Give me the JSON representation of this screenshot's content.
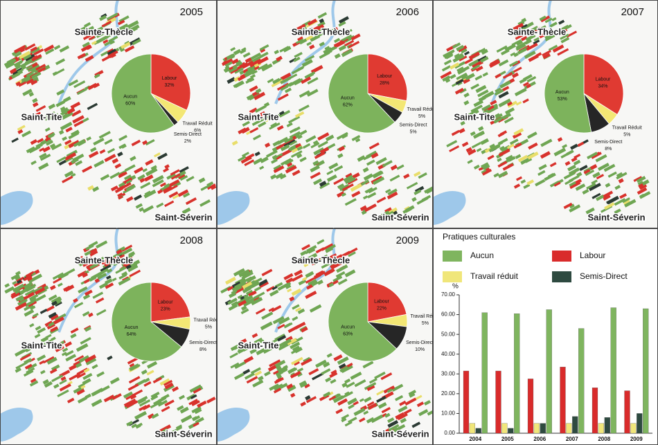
{
  "chart_data": [
    {
      "type": "pie",
      "title": "2005",
      "categories": [
        "Labour",
        "Travail Réduit",
        "Semis-Direct",
        "Aucun"
      ],
      "values": [
        32,
        6,
        2,
        60
      ],
      "value_labels": [
        "32%",
        "6%",
        "2%",
        "60%"
      ],
      "colors": [
        "#e03a32",
        "#f3e774",
        "#262626",
        "#7db35c"
      ],
      "annotations": [
        "Sainte-Thècle",
        "Saint-Tite",
        "Saint-Séverin"
      ]
    },
    {
      "type": "pie",
      "title": "2006",
      "categories": [
        "Labour",
        "Travail Réduit",
        "Semis-Direct",
        "Aucun"
      ],
      "values": [
        28,
        5,
        5,
        62
      ],
      "value_labels": [
        "28%",
        "5%",
        "5%",
        "62%"
      ],
      "colors": [
        "#e03a32",
        "#f3e774",
        "#262626",
        "#7db35c"
      ],
      "annotations": [
        "Sainte-Thècle",
        "Saint-Tite",
        "Saint-Séverin"
      ]
    },
    {
      "type": "pie",
      "title": "2007",
      "categories": [
        "Labour",
        "Travail Réduit",
        "Semis-Direct",
        "Aucun"
      ],
      "values": [
        34,
        5,
        8,
        53
      ],
      "value_labels": [
        "34%",
        "5%",
        "8%",
        "53%"
      ],
      "colors": [
        "#e03a32",
        "#f3e774",
        "#262626",
        "#7db35c"
      ],
      "annotations": [
        "Sainte-Thècle",
        "Saint-Tite",
        "Saint-Séverin"
      ]
    },
    {
      "type": "pie",
      "title": "2008",
      "categories": [
        "Labour",
        "Travail Réduit",
        "Semis-Direct",
        "Aucun"
      ],
      "values": [
        23,
        5,
        8,
        64
      ],
      "value_labels": [
        "23%",
        "5%",
        "8%",
        "64%"
      ],
      "colors": [
        "#e03a32",
        "#f3e774",
        "#262626",
        "#7db35c"
      ],
      "annotations": [
        "Sainte-Thècle",
        "Saint-Tite",
        "Saint-Séverin"
      ]
    },
    {
      "type": "pie",
      "title": "2009",
      "categories": [
        "Labour",
        "Travail Réduit",
        "Semis-Direct",
        "Aucun"
      ],
      "values": [
        22,
        5,
        10,
        63
      ],
      "value_labels": [
        "22%",
        "5%",
        "10%",
        "63%"
      ],
      "colors": [
        "#e03a32",
        "#f3e774",
        "#262626",
        "#7db35c"
      ],
      "annotations": [
        "Sainte-Thècle",
        "Saint-Tite",
        "Saint-Séverin"
      ]
    },
    {
      "type": "bar",
      "title": "Pratiques culturales",
      "y_label": "%",
      "categories": [
        "2004",
        "2005",
        "2006",
        "2007",
        "2008",
        "2009"
      ],
      "series": [
        {
          "name": "Aucun",
          "color": "#7fb55f",
          "values": [
            61,
            60.5,
            62.5,
            53,
            63.5,
            63
          ]
        },
        {
          "name": "Labour",
          "color": "#d92b2b",
          "values": [
            31.5,
            31.5,
            27.5,
            33.5,
            23,
            21.5
          ]
        },
        {
          "name": "Travail réduit",
          "color": "#f0e67a",
          "values": [
            5,
            5,
            5,
            5,
            5,
            5
          ]
        },
        {
          "name": "Semis-Direct",
          "color": "#2e4a40",
          "values": [
            2.5,
            2.5,
            5,
            8.5,
            8,
            10
          ]
        }
      ],
      "ylim": [
        0,
        70
      ],
      "yticks": [
        {
          "value": 0,
          "label": "0.00"
        },
        {
          "value": 10,
          "label": "10.00"
        },
        {
          "value": 20,
          "label": "20.00"
        },
        {
          "value": 30,
          "label": "30.00"
        },
        {
          "value": 40,
          "label": "40.00"
        },
        {
          "value": 50,
          "label": "50.00"
        },
        {
          "value": 60,
          "label": "60.00"
        },
        {
          "value": 70,
          "label": "70.00"
        }
      ],
      "grid": false
    }
  ]
}
